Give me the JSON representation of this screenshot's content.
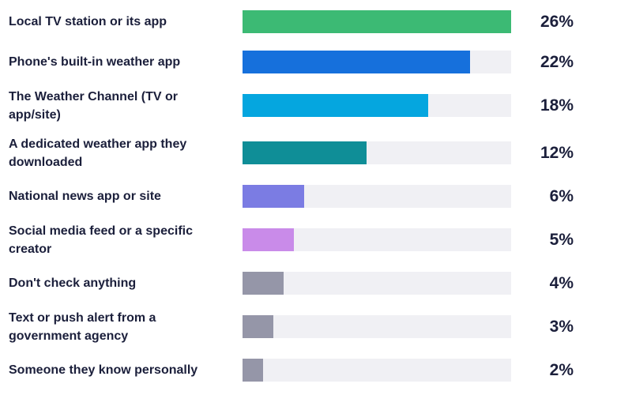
{
  "chart_data": {
    "type": "bar",
    "orientation": "horizontal",
    "categories": [
      "Local TV station or its app",
      "Phone's built-in weather app",
      "The Weather Channel (TV or app/site)",
      "A dedicated weather app they downloaded",
      "National news app or site",
      "Social media feed or a specific creator",
      "Don't check anything",
      "Text or push alert from a government agency",
      "Someone they know personally"
    ],
    "values": [
      26,
      22,
      18,
      12,
      6,
      5,
      4,
      3,
      2
    ],
    "value_labels": [
      "26%",
      "22%",
      "18%",
      "12%",
      "6%",
      "5%",
      "4%",
      "3%",
      "2%"
    ],
    "xlim": [
      0,
      26
    ],
    "unit": "%",
    "grid": false,
    "legend": "none",
    "colors": [
      "#3cba74",
      "#1670dc",
      "#05a6df",
      "#0f8e97",
      "#7b7ce3",
      "#c98be9",
      "#9596a8",
      "#9596a8",
      "#9596a8"
    ],
    "track_color": "#f0f0f4"
  }
}
